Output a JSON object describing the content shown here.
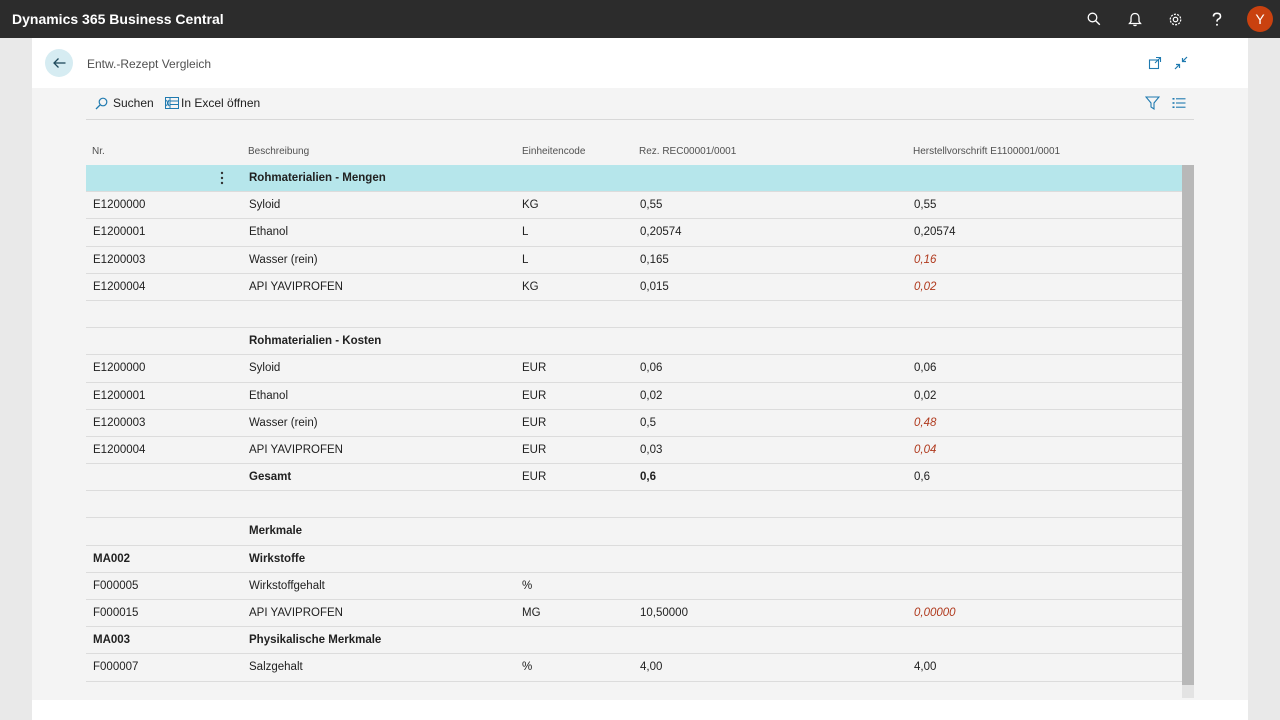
{
  "app": {
    "title": "Dynamics 365 Business Central",
    "avatar_initial": "Y"
  },
  "page": {
    "title": "Entw.-Rezept Vergleich"
  },
  "toolbar": {
    "search_label": "Suchen",
    "excel_label": "In Excel öffnen"
  },
  "columns": {
    "nr": "Nr.",
    "desc": "Beschreibung",
    "unit": "Einheitencode",
    "rez": "Rez. REC00001/0001",
    "her": "Herstellvorschrift E1100001/0001"
  },
  "rows": [
    {
      "nr": "",
      "desc": "Rohmaterialien - Mengen",
      "unit": "",
      "rez": "",
      "her": ""
    },
    {
      "nr": "E1200000",
      "desc": "Syloid",
      "unit": "KG",
      "rez": "0,55",
      "her": "0,55"
    },
    {
      "nr": "E1200001",
      "desc": "Ethanol",
      "unit": "L",
      "rez": "0,20574",
      "her": "0,20574"
    },
    {
      "nr": "E1200003",
      "desc": "Wasser (rein)",
      "unit": "L",
      "rez": "0,165",
      "her": "0,16"
    },
    {
      "nr": "E1200004",
      "desc": "API YAVIPROFEN",
      "unit": "KG",
      "rez": "0,015",
      "her": "0,02"
    },
    {
      "nr": "",
      "desc": "",
      "unit": "",
      "rez": "",
      "her": ""
    },
    {
      "nr": "",
      "desc": "Rohmaterialien - Kosten",
      "unit": "",
      "rez": "",
      "her": ""
    },
    {
      "nr": "E1200000",
      "desc": "Syloid",
      "unit": "EUR",
      "rez": "0,06",
      "her": "0,06"
    },
    {
      "nr": "E1200001",
      "desc": "Ethanol",
      "unit": "EUR",
      "rez": "0,02",
      "her": "0,02"
    },
    {
      "nr": "E1200003",
      "desc": "Wasser (rein)",
      "unit": "EUR",
      "rez": "0,5",
      "her": "0,48"
    },
    {
      "nr": "E1200004",
      "desc": "API YAVIPROFEN",
      "unit": "EUR",
      "rez": "0,03",
      "her": "0,04"
    },
    {
      "nr": "",
      "desc": "Gesamt",
      "unit": "EUR",
      "rez": "0,6",
      "her": "0,6"
    },
    {
      "nr": "",
      "desc": "",
      "unit": "",
      "rez": "",
      "her": ""
    },
    {
      "nr": "",
      "desc": "Merkmale",
      "unit": "",
      "rez": "",
      "her": ""
    },
    {
      "nr": "MA002",
      "desc": "Wirkstoffe",
      "unit": "",
      "rez": "",
      "her": ""
    },
    {
      "nr": "F000005",
      "desc": "Wirkstoffgehalt",
      "unit": "%",
      "rez": "",
      "her": ""
    },
    {
      "nr": "F000015",
      "desc": "API YAVIPROFEN",
      "unit": "MG",
      "rez": "10,50000",
      "her": "0,00000"
    },
    {
      "nr": "MA003",
      "desc": "Physikalische Merkmale",
      "unit": "",
      "rez": "",
      "her": ""
    },
    {
      "nr": "F000007",
      "desc": "Salzgehalt",
      "unit": "%",
      "rez": "4,00",
      "her": "4,00"
    }
  ],
  "colors": {
    "topbar": "#2c2c2c",
    "selected_row": "#b6e6eb",
    "accent": "#1f7ab0",
    "diff_text": "#b03a1e",
    "avatar": "#c9410f"
  }
}
